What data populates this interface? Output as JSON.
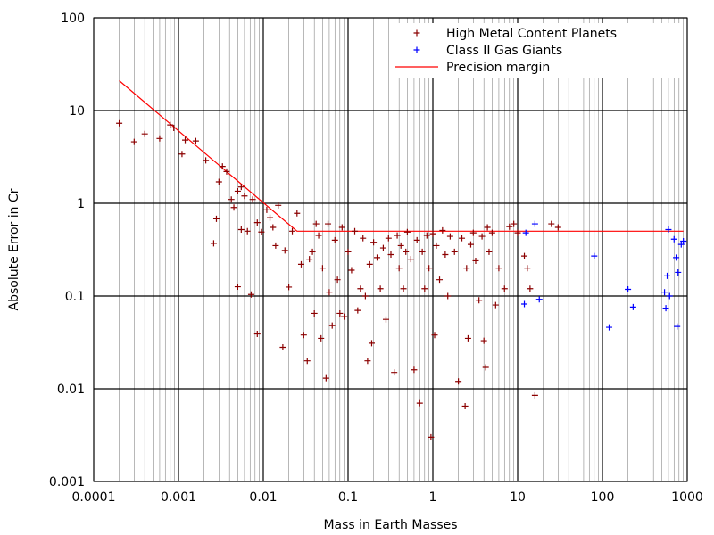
{
  "chart_data": {
    "type": "scatter",
    "xlabel": "Mass in Earth Masses",
    "ylabel": "Absolute Error in Cr",
    "xscale": "log",
    "yscale": "log",
    "xlim": [
      0.0001,
      1000
    ],
    "ylim": [
      0.001,
      100
    ],
    "x_ticks": [
      "0.0001",
      "0.001",
      "0.01",
      "0.1",
      "1",
      "10",
      "100",
      "1000"
    ],
    "y_ticks": [
      "0.001",
      "0.01",
      "0.1",
      "1",
      "10",
      "100"
    ],
    "grid": true,
    "legend_position": "top-right",
    "colors": {
      "high_metal": "#8b0000",
      "gas_giants": "#0000ff",
      "precision": "#ff0000",
      "grid_major": "#000000",
      "grid_minor": "#888888"
    },
    "series": [
      {
        "name": "High Metal Content Planets",
        "marker": "+",
        "color": "#8b0000",
        "points": [
          [
            0.0002,
            7.3
          ],
          [
            0.0003,
            4.6
          ],
          [
            0.0004,
            5.6
          ],
          [
            0.0006,
            5.0
          ],
          [
            0.0008,
            7.0
          ],
          [
            0.00088,
            6.5
          ],
          [
            0.0011,
            3.4
          ],
          [
            0.0012,
            4.8
          ],
          [
            0.0016,
            4.7
          ],
          [
            0.0021,
            2.9
          ],
          [
            0.0026,
            0.37
          ],
          [
            0.0028,
            0.68
          ],
          [
            0.003,
            1.7
          ],
          [
            0.0033,
            2.5
          ],
          [
            0.0037,
            2.2
          ],
          [
            0.0042,
            1.1
          ],
          [
            0.0045,
            0.9
          ],
          [
            0.005,
            0.126
          ],
          [
            0.005,
            1.35
          ],
          [
            0.0055,
            1.5
          ],
          [
            0.0055,
            0.52
          ],
          [
            0.006,
            1.2
          ],
          [
            0.0065,
            0.5
          ],
          [
            0.0072,
            0.104
          ],
          [
            0.0075,
            1.1
          ],
          [
            0.0085,
            0.039
          ],
          [
            0.0085,
            0.62
          ],
          [
            0.0095,
            0.49
          ],
          [
            0.011,
            0.85
          ],
          [
            0.012,
            0.7
          ],
          [
            0.013,
            0.55
          ],
          [
            0.014,
            0.35
          ],
          [
            0.015,
            0.95
          ],
          [
            0.017,
            0.028
          ],
          [
            0.018,
            0.31
          ],
          [
            0.02,
            0.125
          ],
          [
            0.022,
            0.5
          ],
          [
            0.025,
            0.78
          ],
          [
            0.028,
            0.22
          ],
          [
            0.03,
            0.038
          ],
          [
            0.033,
            0.02
          ],
          [
            0.035,
            0.25
          ],
          [
            0.038,
            0.3
          ],
          [
            0.04,
            0.065
          ],
          [
            0.042,
            0.6
          ],
          [
            0.045,
            0.45
          ],
          [
            0.048,
            0.035
          ],
          [
            0.05,
            0.2
          ],
          [
            0.055,
            0.013
          ],
          [
            0.058,
            0.6
          ],
          [
            0.06,
            0.11
          ],
          [
            0.065,
            0.048
          ],
          [
            0.07,
            0.4
          ],
          [
            0.075,
            0.15
          ],
          [
            0.08,
            0.065
          ],
          [
            0.085,
            0.55
          ],
          [
            0.09,
            0.06
          ],
          [
            0.1,
            0.3
          ],
          [
            0.11,
            0.19
          ],
          [
            0.12,
            0.5
          ],
          [
            0.13,
            0.07
          ],
          [
            0.14,
            0.12
          ],
          [
            0.15,
            0.42
          ],
          [
            0.16,
            0.1
          ],
          [
            0.17,
            0.02
          ],
          [
            0.18,
            0.22
          ],
          [
            0.19,
            0.031
          ],
          [
            0.2,
            0.38
          ],
          [
            0.22,
            0.26
          ],
          [
            0.24,
            0.12
          ],
          [
            0.26,
            0.33
          ],
          [
            0.28,
            0.056
          ],
          [
            0.3,
            0.42
          ],
          [
            0.32,
            0.28
          ],
          [
            0.35,
            0.015
          ],
          [
            0.38,
            0.45
          ],
          [
            0.4,
            0.2
          ],
          [
            0.42,
            0.35
          ],
          [
            0.45,
            0.12
          ],
          [
            0.48,
            0.3
          ],
          [
            0.5,
            0.49
          ],
          [
            0.55,
            0.25
          ],
          [
            0.6,
            0.016
          ],
          [
            0.65,
            0.4
          ],
          [
            0.7,
            0.007
          ],
          [
            0.75,
            0.3
          ],
          [
            0.8,
            0.12
          ],
          [
            0.85,
            0.45
          ],
          [
            0.9,
            0.2
          ],
          [
            0.95,
            0.003
          ],
          [
            1.0,
            0.47
          ],
          [
            1.05,
            0.038
          ],
          [
            1.1,
            0.35
          ],
          [
            1.2,
            0.15
          ],
          [
            1.3,
            0.51
          ],
          [
            1.4,
            0.28
          ],
          [
            1.5,
            0.1
          ],
          [
            1.6,
            0.44
          ],
          [
            1.8,
            0.3
          ],
          [
            2.0,
            0.012
          ],
          [
            2.2,
            0.42
          ],
          [
            2.4,
            0.0065
          ],
          [
            2.5,
            0.2
          ],
          [
            2.6,
            0.035
          ],
          [
            2.8,
            0.36
          ],
          [
            3.0,
            0.48
          ],
          [
            3.2,
            0.24
          ],
          [
            3.5,
            0.09
          ],
          [
            3.8,
            0.44
          ],
          [
            4.0,
            0.033
          ],
          [
            4.2,
            0.017
          ],
          [
            4.4,
            0.55
          ],
          [
            4.6,
            0.3
          ],
          [
            5.0,
            0.48
          ],
          [
            5.5,
            0.08
          ],
          [
            6.0,
            0.2
          ],
          [
            7.0,
            0.12
          ],
          [
            8.0,
            0.56
          ],
          [
            9.0,
            0.6
          ],
          [
            10.0,
            0.48
          ],
          [
            12.0,
            0.27
          ],
          [
            13.0,
            0.2
          ],
          [
            14.0,
            0.12
          ],
          [
            16.0,
            0.0085
          ],
          [
            25.0,
            0.6
          ],
          [
            30.0,
            0.55
          ]
        ]
      },
      {
        "name": "Class II Gas Giants",
        "marker": "+",
        "color": "#0000ff",
        "points": [
          [
            12.0,
            0.082
          ],
          [
            12.5,
            0.48
          ],
          [
            16.0,
            0.6
          ],
          [
            18.0,
            0.092
          ],
          [
            80.0,
            0.27
          ],
          [
            120.0,
            0.046
          ],
          [
            200.0,
            0.118
          ],
          [
            230.0,
            0.076
          ],
          [
            540.0,
            0.11
          ],
          [
            560.0,
            0.074
          ],
          [
            580.0,
            0.165
          ],
          [
            600.0,
            0.52
          ],
          [
            620.0,
            0.1
          ],
          [
            700.0,
            0.41
          ],
          [
            740.0,
            0.26
          ],
          [
            760.0,
            0.047
          ],
          [
            780.0,
            0.18
          ],
          [
            850.0,
            0.36
          ],
          [
            900.0,
            0.39
          ]
        ]
      },
      {
        "name": "Precision margin",
        "type": "line",
        "color": "#ff0000",
        "points": [
          [
            0.0002,
            21
          ],
          [
            0.025,
            0.5
          ],
          [
            900,
            0.5
          ]
        ]
      }
    ]
  }
}
